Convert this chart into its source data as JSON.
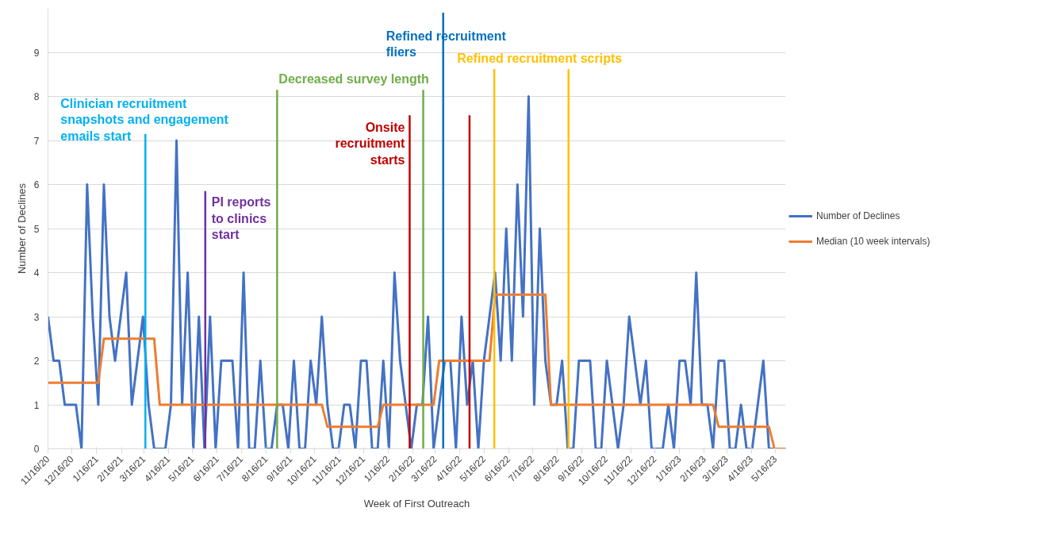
{
  "chart_data": {
    "type": "line",
    "xlabel": "Week of First Outreach",
    "ylabel": "Number of Declines",
    "x": [
      "2020-11-16",
      "2020-11-23",
      "2020-11-30",
      "2020-12-07",
      "2020-12-14",
      "2020-12-21",
      "2020-12-28",
      "2021-01-04",
      "2021-01-11",
      "2021-01-18",
      "2021-01-25",
      "2021-02-01",
      "2021-02-08",
      "2021-02-15",
      "2021-02-22",
      "2021-03-01",
      "2021-03-08",
      "2021-03-15",
      "2021-03-22",
      "2021-03-29",
      "2021-04-05",
      "2021-04-12",
      "2021-04-19",
      "2021-04-26",
      "2021-05-03",
      "2021-05-10",
      "2021-05-17",
      "2021-05-24",
      "2021-05-31",
      "2021-06-07",
      "2021-06-14",
      "2021-06-21",
      "2021-06-28",
      "2021-07-05",
      "2021-07-12",
      "2021-07-19",
      "2021-07-26",
      "2021-08-02",
      "2021-08-09",
      "2021-08-16",
      "2021-08-23",
      "2021-08-30",
      "2021-09-06",
      "2021-09-13",
      "2021-09-20",
      "2021-09-27",
      "2021-10-04",
      "2021-10-11",
      "2021-10-18",
      "2021-10-25",
      "2021-11-01",
      "2021-11-08",
      "2021-11-15",
      "2021-11-22",
      "2021-11-29",
      "2021-12-06",
      "2021-12-13",
      "2021-12-20",
      "2021-12-27",
      "2022-01-03",
      "2022-01-10",
      "2022-01-17",
      "2022-01-24",
      "2022-01-31",
      "2022-02-07",
      "2022-02-14",
      "2022-02-21",
      "2022-02-28",
      "2022-03-07",
      "2022-03-14",
      "2022-03-21",
      "2022-03-28",
      "2022-04-04",
      "2022-04-11",
      "2022-04-18",
      "2022-04-25",
      "2022-05-02",
      "2022-05-09",
      "2022-05-16",
      "2022-05-23",
      "2022-05-30",
      "2022-06-06",
      "2022-06-13",
      "2022-06-20",
      "2022-06-27",
      "2022-07-04",
      "2022-07-11",
      "2022-07-18",
      "2022-07-25",
      "2022-08-01",
      "2022-08-08",
      "2022-08-15",
      "2022-08-22",
      "2022-08-29",
      "2022-09-05",
      "2022-09-12",
      "2022-09-19",
      "2022-09-26",
      "2022-10-03",
      "2022-10-10",
      "2022-10-17",
      "2022-10-24",
      "2022-10-31",
      "2022-11-07",
      "2022-11-14",
      "2022-11-21",
      "2022-11-28",
      "2022-12-05",
      "2022-12-12",
      "2022-12-19",
      "2022-12-26",
      "2023-01-02",
      "2023-01-09",
      "2023-01-16",
      "2023-01-23",
      "2023-01-30",
      "2023-02-06",
      "2023-02-13",
      "2023-02-20",
      "2023-02-27",
      "2023-03-06",
      "2023-03-13",
      "2023-03-20",
      "2023-03-27",
      "2023-04-03",
      "2023-04-10",
      "2023-04-17",
      "2023-04-24",
      "2023-05-01",
      "2023-05-08",
      "2023-05-15",
      "2023-05-22",
      "2023-05-29"
    ],
    "series": [
      {
        "name": "Number of Declines",
        "color": "#4472c4",
        "values": [
          3,
          2,
          2,
          1,
          1,
          1,
          0,
          6,
          3,
          1,
          6,
          3,
          2,
          3,
          4,
          1,
          2,
          3,
          1,
          0,
          0,
          0,
          1,
          7,
          1,
          4,
          0,
          3,
          0,
          3,
          0,
          2,
          2,
          2,
          0,
          4,
          0,
          0,
          2,
          0,
          0,
          1,
          1,
          0,
          2,
          0,
          0,
          2,
          1,
          3,
          1,
          0,
          0,
          1,
          1,
          0,
          2,
          2,
          0,
          0,
          2,
          0,
          4,
          2,
          1,
          0,
          1,
          1,
          3,
          0,
          1,
          2,
          2,
          0,
          3,
          1,
          2,
          0,
          2,
          3,
          4,
          2,
          5,
          2,
          6,
          3,
          8,
          1,
          5,
          2,
          1,
          1,
          2,
          0,
          0,
          2,
          2,
          2,
          0,
          0,
          2,
          1,
          0,
          1,
          3,
          2,
          1,
          2,
          0,
          0,
          0,
          1,
          0,
          2,
          2,
          1,
          4,
          1,
          1,
          0,
          2,
          2,
          0,
          0,
          1,
          0,
          0,
          1,
          2,
          0,
          0,
          0,
          0
        ]
      },
      {
        "name": "Median (10 week intervals)",
        "color": "#ed7d31",
        "values": [
          1.5,
          1.5,
          1.5,
          1.5,
          1.5,
          1.5,
          1.5,
          1.5,
          1.5,
          1.5,
          2.5,
          2.5,
          2.5,
          2.5,
          2.5,
          2.5,
          2.5,
          2.5,
          2.5,
          2.5,
          1,
          1,
          1,
          1,
          1,
          1,
          1,
          1,
          1,
          1,
          1,
          1,
          1,
          1,
          1,
          1,
          1,
          1,
          1,
          1,
          1,
          1,
          1,
          1,
          1,
          1,
          1,
          1,
          1,
          1,
          0.5,
          0.5,
          0.5,
          0.5,
          0.5,
          0.5,
          0.5,
          0.5,
          0.5,
          0.5,
          1,
          1,
          1,
          1,
          1,
          1,
          1,
          1,
          1,
          1,
          2,
          2,
          2,
          2,
          2,
          2,
          2,
          2,
          2,
          2,
          3.5,
          3.5,
          3.5,
          3.5,
          3.5,
          3.5,
          3.5,
          3.5,
          3.5,
          3.5,
          1,
          1,
          1,
          1,
          1,
          1,
          1,
          1,
          1,
          1,
          1,
          1,
          1,
          1,
          1,
          1,
          1,
          1,
          1,
          1,
          1,
          1,
          1,
          1,
          1,
          1,
          1,
          1,
          1,
          1,
          0.5,
          0.5,
          0.5,
          0.5,
          0.5,
          0.5,
          0.5,
          0.5,
          0.5,
          0.5,
          0,
          0,
          0
        ]
      }
    ],
    "xlim": [
      "2020-11-16",
      "2023-05-29"
    ],
    "xticks": [
      {
        "value": "2020-11-16",
        "label": "11/16/20"
      },
      {
        "value": "2020-12-16",
        "label": "12/16/20"
      },
      {
        "value": "2021-01-16",
        "label": "1/16/21"
      },
      {
        "value": "2021-02-16",
        "label": "2/16/21"
      },
      {
        "value": "2021-03-16",
        "label": "3/16/21"
      },
      {
        "value": "2021-04-16",
        "label": "4/16/21"
      },
      {
        "value": "2021-05-16",
        "label": "5/16/21"
      },
      {
        "value": "2021-06-16",
        "label": "6/16/21"
      },
      {
        "value": "2021-07-16",
        "label": "7/16/21"
      },
      {
        "value": "2021-08-16",
        "label": "8/16/21"
      },
      {
        "value": "2021-09-16",
        "label": "9/16/21"
      },
      {
        "value": "2021-10-16",
        "label": "10/16/21"
      },
      {
        "value": "2021-11-16",
        "label": "11/16/21"
      },
      {
        "value": "2021-12-16",
        "label": "12/16/21"
      },
      {
        "value": "2022-01-16",
        "label": "1/16/22"
      },
      {
        "value": "2022-02-16",
        "label": "2/16/22"
      },
      {
        "value": "2022-03-16",
        "label": "3/16/22"
      },
      {
        "value": "2022-04-16",
        "label": "4/16/22"
      },
      {
        "value": "2022-05-16",
        "label": "5/16/22"
      },
      {
        "value": "2022-06-16",
        "label": "6/16/22"
      },
      {
        "value": "2022-07-16",
        "label": "7/16/22"
      },
      {
        "value": "2022-08-16",
        "label": "8/16/22"
      },
      {
        "value": "2022-09-16",
        "label": "9/16/22"
      },
      {
        "value": "2022-10-16",
        "label": "10/16/22"
      },
      {
        "value": "2022-11-16",
        "label": "11/16/22"
      },
      {
        "value": "2022-12-16",
        "label": "12/16/22"
      },
      {
        "value": "2023-01-16",
        "label": "1/16/23"
      },
      {
        "value": "2023-02-16",
        "label": "2/16/23"
      },
      {
        "value": "2023-03-16",
        "label": "3/16/23"
      },
      {
        "value": "2023-04-16",
        "label": "4/16/23"
      },
      {
        "value": "2023-05-16",
        "label": "5/16/23"
      }
    ],
    "ylim": [
      0,
      10
    ],
    "yticks": [
      0,
      1,
      2,
      3,
      4,
      5,
      6,
      7,
      8,
      9
    ],
    "grid": "y",
    "legend": "right",
    "ref_lines": [
      {
        "axis": "x",
        "value": "2021-03-18",
        "label": "Clinician recruitment snapshots and engagement emails start",
        "color": "#00b0f0"
      },
      {
        "axis": "x",
        "value": "2021-06-01",
        "label": "PI reports to clinics start",
        "color": "#7030a0"
      },
      {
        "axis": "x",
        "value": "2021-08-30",
        "label": "Decreased survey length",
        "color": "#70ad47"
      },
      {
        "axis": "x",
        "value": "2022-03-01",
        "label": null,
        "color": "#70ad47"
      },
      {
        "axis": "x",
        "value": "2022-02-12",
        "label": "Onsite recruitment starts",
        "color": "#c00000"
      },
      {
        "axis": "x",
        "value": "2022-04-28",
        "label": null,
        "color": "#c00000"
      },
      {
        "axis": "x",
        "value": "2022-03-26",
        "label": "Refined recruitment fliers",
        "color": "#0070c0"
      },
      {
        "axis": "x",
        "value": "2022-05-29",
        "label": "Refined recruitment scripts",
        "color": "#ffc000"
      },
      {
        "axis": "x",
        "value": "2022-08-30",
        "label": null,
        "color": "#ffc000"
      }
    ]
  }
}
